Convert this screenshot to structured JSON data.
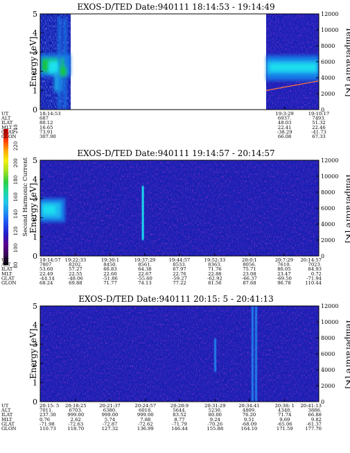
{
  "colors": {
    "background": "#0f1eb0",
    "band_green": "#16c43a",
    "band_cyan": "#1fe0ee",
    "band_mid": "#1878e6",
    "temperature_line": "#ff7a3a"
  },
  "colorbar": {
    "label": "Second Harmonic Current",
    "ticks": [
      "80",
      "100",
      "120",
      "140",
      "160",
      "180",
      "200",
      "220",
      "240"
    ],
    "range": [
      80,
      240
    ],
    "colors": [
      "#000000",
      "#3a0a5a",
      "#5a0090",
      "#2020c8",
      "#1e4ff0",
      "#1f8ef2",
      "#20c8e8",
      "#1fd8a0",
      "#30d040",
      "#a6e020",
      "#f4f010",
      "#ffa000",
      "#ff3000",
      "#d00000"
    ]
  },
  "chart_data": [
    {
      "type": "heatmap",
      "title": "EXOS-D/TED   Date:940111   18:14:53 - 19:14:49",
      "ylabel": "Energy [eV]",
      "ylabel_right": "Temperature [K]",
      "ylim": [
        0,
        5
      ],
      "ylim_right": [
        0,
        12000
      ],
      "yticks": [
        "0",
        "1",
        "2",
        "3",
        "4",
        "5"
      ],
      "yticks_right": [
        "0",
        "2000",
        "4000",
        "6000",
        "8000",
        "10000",
        "12000"
      ],
      "data_segments": [
        {
          "start": "18:14:53",
          "end": "18:22:30"
        },
        {
          "start": "19:03:29",
          "end": "19:14:49"
        }
      ],
      "band_center_ev": 2.2,
      "temperature_k": [
        {
          "time": "19:03:29",
          "value": 2400
        },
        {
          "time": "19:14:49",
          "value": 3600
        }
      ],
      "axis_table": {
        "row_labels": [
          "UT",
          "ALT",
          "ILAT",
          "MLT",
          "GLAT",
          "GLON"
        ],
        "columns": [
          {
            "UT": "18:14:53",
            "ALT": "687",
            "ILAT": "80.12",
            "MLT": "16.65",
            "GLAT": "73.91",
            "GLON": "307.90"
          },
          {
            "UT": "19:3:29",
            "ALT": "6937.",
            "ILAT": "48.03",
            "MLT": "22.41",
            "GLAT": "-38.29",
            "GLON": "66.08"
          },
          {
            "UT": "19:10:17",
            "ALT": "7493.",
            "ILAT": "51.32",
            "MLT": "22.46",
            "GLAT": "-41.73",
            "GLON": "67.33"
          }
        ]
      }
    },
    {
      "type": "heatmap",
      "title": "EXOS-D/TED   Date:940111   19:14:57 - 20:14:57",
      "ylabel": "Energy [eV]",
      "ylabel_right": "Temperature [K]",
      "ylim": [
        0,
        5
      ],
      "ylim_right": [
        0,
        12000
      ],
      "yticks": [
        "0",
        "1",
        "2",
        "3",
        "4",
        "5"
      ],
      "yticks_right": [
        "0",
        "2000",
        "4000",
        "6000",
        "8000",
        "10000",
        "12000"
      ],
      "band_center_ev": 2.3,
      "spike_time": "19:37:00",
      "axis_table": {
        "row_labels": [
          "UT",
          "ALT",
          "ILAT",
          "MLT",
          "GLAT",
          "GLON"
        ],
        "columns": [
          {
            "UT": "19:14:57",
            "ALT": "7807",
            "ILAT": "53.60",
            "MLT": "22.49",
            "GLAT": "-44.14",
            "GLON": "68.24"
          },
          {
            "UT": "19:22:33",
            "ALT": "8202.",
            "ILAT": "57.27",
            "MLT": "22.55",
            "GLAT": "-48.06",
            "GLON": "69.88"
          },
          {
            "UT": "19:30:1",
            "ALT": "8450.",
            "ILAT": "60.83",
            "MLT": "22.60",
            "GLAT": "-51.86",
            "GLON": "71.77"
          },
          {
            "UT": "19:37:29",
            "ALT": "8561.",
            "ILAT": "64.38",
            "MLT": "22.67",
            "GLAT": "-55.60",
            "GLON": "74.13"
          },
          {
            "UT": "19:44:57",
            "ALT": "8533.",
            "ILAT": "67.97",
            "MLT": "22.76",
            "GLAT": "-59.27",
            "GLON": "77.22"
          },
          {
            "UT": "19:52:33",
            "ALT": "8363.",
            "ILAT": "71.76",
            "MLT": "22.88",
            "GLAT": "-62.92",
            "GLON": "81.56"
          },
          {
            "UT": "20:0:1",
            "ALT": "8056.",
            "ILAT": "75.71",
            "MLT": "23.08",
            "GLAT": "-66.37",
            "GLON": "87.68"
          },
          {
            "UT": "20:7:29",
            "ALT": "7610.",
            "ILAT": "80.05",
            "MLT": "23.47",
            "GLAT": "-69.50",
            "GLON": "96.78"
          },
          {
            "UT": "20:14:57",
            "ALT": "7023.",
            "ILAT": "84.93",
            "MLT": "0.72",
            "GLAT": "-71.94",
            "GLON": "110.44"
          }
        ]
      }
    },
    {
      "type": "heatmap",
      "title": "EXOS-D/TED   Date:940111   20:15: 5 - 20:41:13",
      "ylabel": "Energy [eV]",
      "ylabel_right": "Temperature [K]",
      "ylim": [
        0,
        5
      ],
      "ylim_right": [
        0,
        12000
      ],
      "yticks": [
        "0",
        "1",
        "2",
        "3",
        "4",
        "5"
      ],
      "yticks_right": [
        "0",
        "2000",
        "4000",
        "6000",
        "8000",
        "10000",
        "12000"
      ],
      "spike_times": [
        "20:31:30",
        "20:35:00",
        "20:35:20"
      ],
      "axis_table": {
        "row_labels": [
          "UT",
          "ALT",
          "ILAT",
          "MLT",
          "GLAT",
          "GLON"
        ],
        "columns": [
          {
            "UT": "20:15: 5",
            "ALT": "7011.",
            "ILAT": "237.30",
            "MLT": "0.76",
            "GLAT": "-71.98",
            "GLON": "110.73"
          },
          {
            "UT": "20:18:25",
            "ALT": "6703.",
            "ILAT": "999.00",
            "MLT": "2.62",
            "GLAT": "-72.63",
            "GLON": "118.70"
          },
          {
            "UT": "20:21:37",
            "ALT": "6380.",
            "ILAT": "999.00",
            "MLT": "5.74",
            "GLAT": "-72.87",
            "GLON": "127.32"
          },
          {
            "UT": "20:24:57",
            "ALT": "6018.",
            "ILAT": "999.00",
            "MLT": "7.88",
            "GLAT": "-72.62",
            "GLON": "136.99"
          },
          {
            "UT": "20:28:9",
            "ALT": "5644.",
            "ILAT": "83.52",
            "MLT": "8.77",
            "GLAT": "-71.79",
            "GLON": "146.44"
          },
          {
            "UT": "20:31:29",
            "ALT": "5230.",
            "ILAT": "80.00",
            "MLT": "9.24",
            "GLAT": "-70.26",
            "GLON": "155.88"
          },
          {
            "UT": "20:34:41",
            "ALT": "4809.",
            "ILAT": "76.20",
            "MLT": "9.51",
            "GLAT": "-68.09",
            "GLON": "164.10"
          },
          {
            "UT": "20:38: 1",
            "ALT": "4348.",
            "ILAT": "71.74",
            "MLT": "9.69",
            "GLAT": "-65.06",
            "GLON": "171.59"
          },
          {
            "UT": "20:41:13",
            "ALT": "3886.",
            "ILAT": "66.88",
            "MLT": "9.82",
            "GLAT": "-61.37",
            "GLON": "177.70"
          }
        ]
      }
    }
  ]
}
